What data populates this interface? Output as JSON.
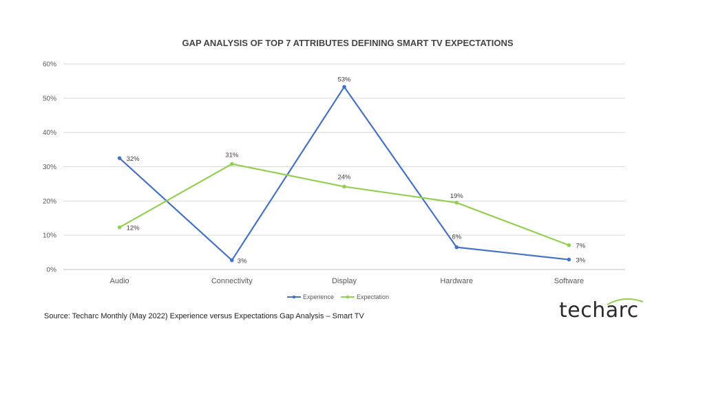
{
  "chart_data": {
    "type": "line",
    "title": "GAP ANALYSIS OF TOP 7 ATTRIBUTES DEFINING SMART TV EXPECTATIONS",
    "categories": [
      "Audio",
      "Connectivity",
      "Display",
      "Hardware",
      "Software"
    ],
    "series": [
      {
        "name": "Experience",
        "color": "#4472C4",
        "values": [
          32.5,
          2.7,
          53.3,
          6.5,
          2.9
        ],
        "labels": [
          "32%",
          "3%",
          "53%",
          "6%",
          "3%"
        ]
      },
      {
        "name": "Expectation",
        "color": "#92D050",
        "values": [
          12.3,
          30.8,
          24.2,
          19.5,
          7.1
        ],
        "labels": [
          "12%",
          "31%",
          "24%",
          "19%",
          "7%"
        ]
      }
    ],
    "ylim": [
      0,
      60
    ],
    "yticks": [
      0,
      10,
      20,
      30,
      40,
      50,
      60
    ],
    "ytick_labels": [
      "0%",
      "10%",
      "20%",
      "30%",
      "40%",
      "50%",
      "60%"
    ],
    "grid": true,
    "legend_position": "bottom"
  },
  "source_text": "Source: Techarc Monthly (May 2022) Experience versus Expectations Gap Analysis – Smart TV",
  "logo": {
    "text": "techarc",
    "arc_color": "#92D050"
  }
}
